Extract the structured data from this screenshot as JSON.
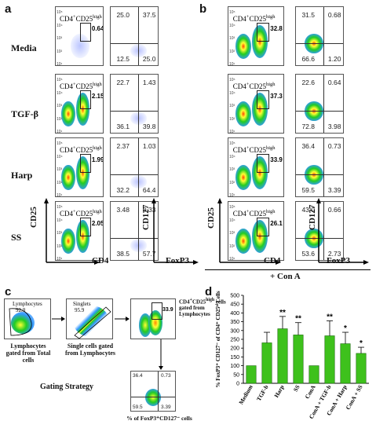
{
  "panel_letters": {
    "a": "a",
    "b": "b",
    "c": "c",
    "d": "d"
  },
  "rows": [
    "Media",
    "TGF-β",
    "Harp",
    "SS"
  ],
  "gate_label_main": "CD4",
  "gate_label_sup1": "+",
  "gate_label_mid": "CD25",
  "gate_label_sup2": "high",
  "panel_a": {
    "gate_values": [
      "0.64",
      "2.15",
      "1.99",
      "2.05"
    ],
    "quadrants": [
      {
        "ul": "25.0",
        "ur": "37.5",
        "ll": "12.5",
        "lr": "25.0"
      },
      {
        "ul": "22.7",
        "ur": "1.43",
        "ll": "36.1",
        "lr": "39.8"
      },
      {
        "ul": "2.37",
        "ur": "1.03",
        "ll": "32.2",
        "lr": "64.4"
      },
      {
        "ul": "3.48",
        "ur": "0.33",
        "ll": "38.5",
        "lr": "57.7"
      }
    ],
    "axis_y1": "CD25",
    "axis_x1": "CD4",
    "axis_y2": "CD127",
    "axis_x2": "FoxP3"
  },
  "panel_b": {
    "gate_values": [
      "32.8",
      "37.3",
      "33.9",
      "26.1"
    ],
    "quadrants": [
      {
        "ul": "31.5",
        "ur": "0.68",
        "ll": "66.6",
        "lr": "1.20"
      },
      {
        "ul": "22.6",
        "ur": "0.64",
        "ll": "72.8",
        "lr": "3.98"
      },
      {
        "ul": "36.4",
        "ur": "0.73",
        "ll": "59.5",
        "lr": "3.39"
      },
      {
        "ul": "43.0",
        "ur": "0.66",
        "ll": "53.6",
        "lr": "2.73"
      }
    ],
    "axis_y1": "CD25",
    "axis_x1": "CD4",
    "axis_y2": "CD127",
    "axis_x2": "FoxP3",
    "footer": "+ Con A"
  },
  "panel_c": {
    "plot1_gate": "Lymphocytes",
    "plot1_value": "92.0",
    "plot1_caption": "Lymphocytes gated from Total cells",
    "plot2_gate": "Singlets",
    "plot2_value": "95.9",
    "plot2_caption": "Single cells gated from Lymphocytes",
    "plot3_value": "33.9",
    "plot3_caption_sup1": "+",
    "plot3_caption_sup2": "high",
    "plot3_caption_a": "CD4",
    "plot3_caption_b": "CD25",
    "plot3_caption_c": "cells gated from Lymphocytes",
    "plot4_quadrants": {
      "ul": "36.4",
      "ur": "0.73",
      "ll": "59.5",
      "lr": "3.39"
    },
    "plot4_caption": "% of FoxP3⁺CD127⁻ cells",
    "title": "Gating Strategy"
  },
  "chart_data": {
    "type": "bar",
    "ylabel": "% FoxP3⁺ CD127⁻ of CD4⁺ CD25ʰⁱ Cells",
    "ylim": [
      0,
      500
    ],
    "yticks": [
      "0",
      "50",
      "100",
      "150",
      "200",
      "250",
      "300",
      "350",
      "400",
      "450",
      "500"
    ],
    "categories": [
      "Medium",
      "TGF-b",
      "Harp",
      "SS",
      "ConA",
      "ConA + TGF-b",
      "ConA + Harp",
      "ConA + SS"
    ],
    "values": [
      100,
      230,
      310,
      275,
      100,
      270,
      225,
      170
    ],
    "errors": [
      0,
      60,
      70,
      70,
      0,
      85,
      65,
      35
    ],
    "significance": [
      "",
      "",
      "**",
      "**",
      "",
      "**",
      "*",
      "*"
    ],
    "bar_color": "#3ec11c"
  }
}
